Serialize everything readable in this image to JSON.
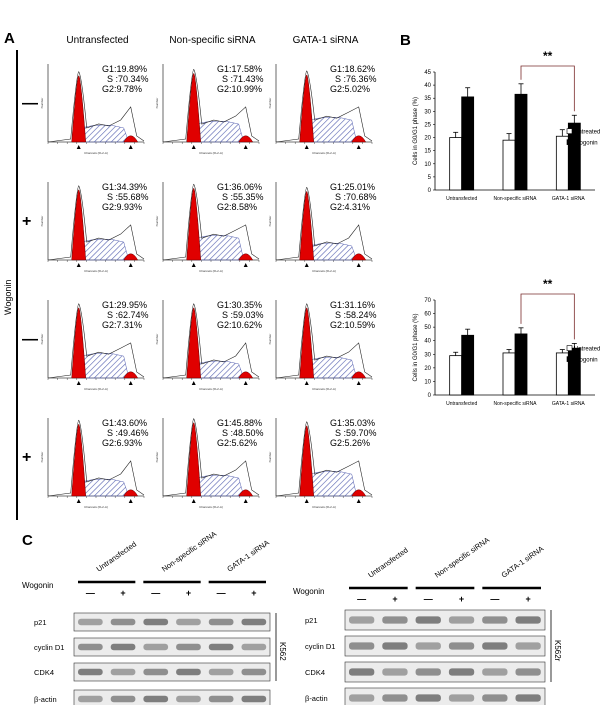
{
  "panels": {
    "A": "A",
    "B": "B",
    "C": "C"
  },
  "panelA": {
    "columns": [
      "Untransfected",
      "Non-specific siRNA",
      "GATA-1 siRNA"
    ],
    "row_axis_label": "Wogonin",
    "row_signs": [
      "—",
      "+",
      "—",
      "+"
    ],
    "hist_ylabel": "Number",
    "hist_xlabel": "Channels (FL2-A)",
    "stats": [
      [
        "G1:19.89%\n  S :70.34%\nG2:9.78%",
        "G1:17.58%\n  S :71.43%\nG2:10.99%",
        "G1:18.62%\n  S :76.36%\nG2:5.02%"
      ],
      [
        "G1:34.39%\n  S :55.68%\nG2:9.93%",
        "G1:36.06%\n  S :55.35%\nG2:8.58%",
        "G1:25.01%\n  S :70.68%\nG2:4.31%"
      ],
      [
        "G1:29.95%\n  S :62.74%\nG2:7.31%",
        "G1:30.35%\n  S :59.03%\nG2:10.62%",
        "G1:31.16%\n  S :58.24%\nG2:10.59%"
      ],
      [
        "G1:43.60%\n  S :49.46%\nG2:6.93%",
        "G1:45.88%\n  S :48.50%\nG2:5.62%",
        "G1:35.03%\n  S :59.70%\nG2:5.26%"
      ]
    ],
    "g1_heights": [
      [
        0.85,
        0.88,
        0.86
      ],
      [
        0.9,
        0.92,
        0.88
      ],
      [
        0.9,
        0.9,
        0.9
      ],
      [
        0.92,
        0.94,
        0.9
      ]
    ]
  },
  "chart_data": [
    {
      "type": "bar",
      "categories": [
        "Untransfected",
        "Non-specific siRNA",
        "GATA-1 siRNA"
      ],
      "series": [
        {
          "name": "Untreated",
          "values": [
            20,
            19,
            20.5
          ],
          "errors": [
            2,
            2.5,
            2.5
          ]
        },
        {
          "name": "Wogonin",
          "values": [
            35.5,
            36.5,
            25.5
          ],
          "errors": [
            3.5,
            4,
            3
          ]
        }
      ],
      "ylabel": "Cells in G0/G1 phase (%)",
      "ylim": [
        0,
        45
      ],
      "yticks": [
        0,
        5,
        10,
        15,
        20,
        25,
        30,
        35,
        40,
        45
      ],
      "significance": "**"
    },
    {
      "type": "bar",
      "categories": [
        "Untransfected",
        "Non-specific siRNA",
        "GATA-1 siRNA"
      ],
      "series": [
        {
          "name": "Untreated",
          "values": [
            29,
            31,
            31
          ],
          "errors": [
            2.5,
            2.5,
            2.5
          ]
        },
        {
          "name": "Wogonin",
          "values": [
            44,
            45,
            34.5
          ],
          "errors": [
            4.5,
            4.5,
            3.5
          ]
        }
      ],
      "ylabel": "Cells in G0/G1 phase (%)",
      "ylim": [
        0,
        70
      ],
      "yticks": [
        0,
        10,
        20,
        30,
        40,
        50,
        60,
        70
      ],
      "significance": "**"
    }
  ],
  "panelC": {
    "treatment_label": "Wogonin",
    "groups": [
      "Untransfected",
      "Non-specific siRNA",
      "GATA-1 siRNA"
    ],
    "lane_signs": [
      "—",
      "+",
      "—",
      "+",
      "—",
      "+"
    ],
    "proteins": [
      "p21",
      "cyclin D1",
      "CDK4",
      "β-actin"
    ],
    "cell_lines": [
      "K562",
      "K562r"
    ]
  }
}
